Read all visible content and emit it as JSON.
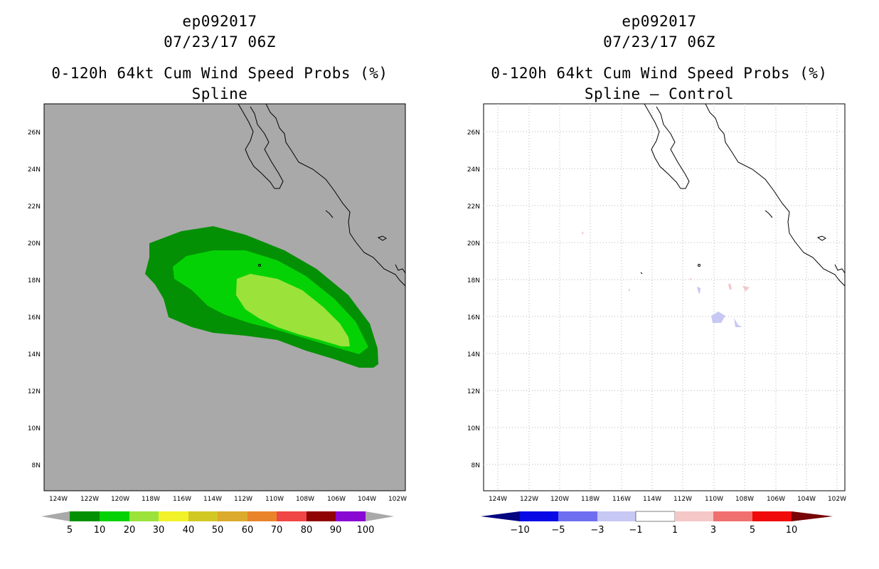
{
  "panels": [
    {
      "storm_id": "ep092017",
      "datetime": "07/23/17 06Z",
      "product": "0-120h 64kt Cum Wind Speed Probs (%)",
      "subtitle": "Spline",
      "background_color": "#a9a9a9",
      "colorbar": {
        "labels": [
          "5",
          "10",
          "20",
          "30",
          "40",
          "50",
          "60",
          "70",
          "80",
          "90",
          "100"
        ],
        "colors": [
          "#049004",
          "#05d205",
          "#9be33b",
          "#f2f22a",
          "#d2c824",
          "#dcaa2c",
          "#e9842a",
          "#f04646",
          "#900404",
          "#8a09d2"
        ],
        "under_color": "#a9a9a9",
        "over_color": "#a9a9a9"
      }
    },
    {
      "storm_id": "ep092017",
      "datetime": "07/23/17 06Z",
      "product": "0-120h 64kt Cum Wind Speed Probs (%)",
      "subtitle": "Spline — Control",
      "background_color": "#ffffff",
      "colorbar": {
        "labels": [
          "−10",
          "−5",
          "−3",
          "−1",
          "1",
          "3",
          "5",
          "10"
        ],
        "colors": [
          "#0a0ae6",
          "#6e6ef0",
          "#c8c8f5",
          "#ffffff",
          "#f5c8c8",
          "#f07070",
          "#f00a0a"
        ],
        "under_color": "#050580",
        "over_color": "#780505"
      }
    }
  ],
  "axes": {
    "lon_labels": [
      "124W",
      "122W",
      "120W",
      "118W",
      "116W",
      "114W",
      "112W",
      "110W",
      "108W",
      "106W",
      "104W",
      "102W"
    ],
    "lat_labels": [
      "26N",
      "24N",
      "22N",
      "20N",
      "18N",
      "16N",
      "14N",
      "12N",
      "10N",
      "8N"
    ]
  }
}
